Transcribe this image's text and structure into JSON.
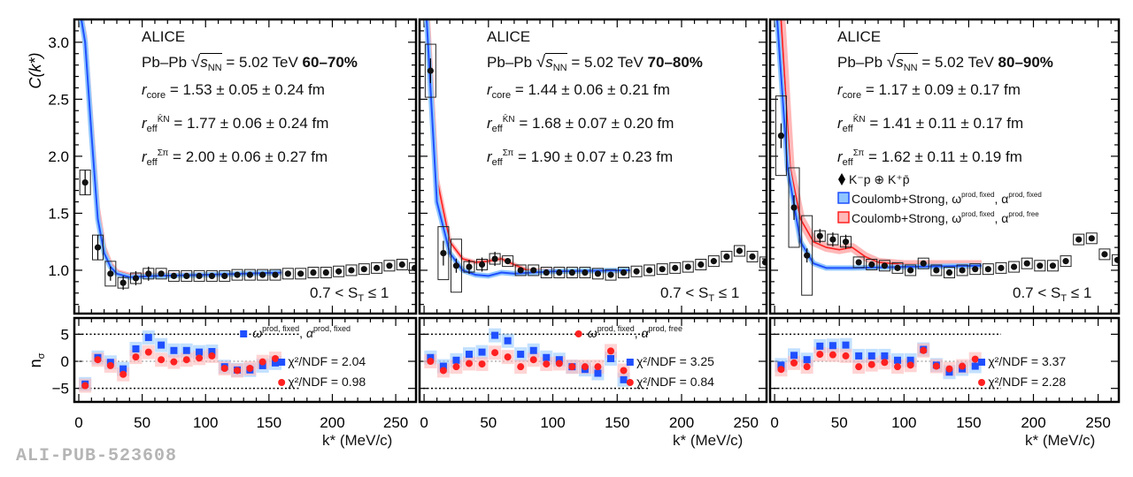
{
  "watermark": "ALI-PUB-523608",
  "colors": {
    "blue": "#1f4fff",
    "red": "#ff2020",
    "blue_band": "#8fc6ff",
    "red_band": "#ffb8b8",
    "data": "#111111"
  },
  "chart_data": [
    {
      "type": "scatter",
      "panel": "top",
      "ylabel": "C(k*)",
      "xlabel": "k* (MeV/c)",
      "xlim": [
        -3.5,
        266
      ],
      "ylim": [
        0.62,
        3.2
      ],
      "yticks": [
        "1.0",
        "1.5",
        "2.0",
        "2.5",
        "3.0"
      ],
      "xticks": [
        "0",
        "50",
        "100",
        "150",
        "200",
        "250"
      ],
      "experiment": "ALICE",
      "system": "Pb–Pb",
      "energy": "= 5.02 TeV",
      "centrality": "60–70%",
      "r_core": "= 1.53 ± 0.05 ± 0.24 fm",
      "r_eff_KN": "= 1.77 ± 0.06 ± 0.24 fm",
      "r_eff_SigmaPi": "= 2.00 ± 0.06 ± 0.27 fm",
      "st_label": "0.7 < S",
      "st_label_end": " ≤ 1",
      "k": [
        5,
        15,
        25,
        35,
        45,
        55,
        65,
        75,
        85,
        95,
        105,
        115,
        125,
        135,
        145,
        155,
        165,
        175,
        185,
        195,
        205,
        215,
        225,
        235,
        245,
        255,
        265
      ],
      "C": [
        1.77,
        1.2,
        0.97,
        0.89,
        0.93,
        0.97,
        0.97,
        0.95,
        0.95,
        0.95,
        0.95,
        0.95,
        0.96,
        0.96,
        0.96,
        0.96,
        0.97,
        0.97,
        0.98,
        0.98,
        0.99,
        1.0,
        1.01,
        1.02,
        1.04,
        1.05,
        1.02
      ],
      "fit_fixed": [
        [
          2,
          3.2
        ],
        [
          5,
          3.0
        ],
        [
          10,
          2.2
        ],
        [
          15,
          1.45
        ],
        [
          20,
          1.15
        ],
        [
          25,
          1.03
        ],
        [
          30,
          0.97
        ],
        [
          40,
          0.94
        ],
        [
          60,
          0.95
        ],
        [
          100,
          0.96
        ],
        [
          160,
          0.98
        ]
      ],
      "fit_free": [
        [
          2.5,
          3.2
        ],
        [
          5,
          3.05
        ],
        [
          10,
          2.3
        ],
        [
          15,
          1.55
        ],
        [
          20,
          1.2
        ],
        [
          25,
          1.06
        ],
        [
          30,
          0.99
        ],
        [
          40,
          0.96
        ],
        [
          60,
          0.96
        ],
        [
          100,
          0.965
        ],
        [
          160,
          0.98
        ]
      ],
      "nsigma_k": [
        5,
        15,
        25,
        35,
        45,
        55,
        65,
        75,
        85,
        95,
        105,
        115,
        125,
        135,
        145,
        155
      ],
      "nsigma_fixed": [
        -4.2,
        0.7,
        -0.2,
        -1.4,
        2.3,
        4.4,
        3.0,
        2.0,
        2.0,
        1.7,
        1.8,
        -1.0,
        -1.6,
        -1.6,
        -0.8,
        -0.3
      ],
      "nsigma_free": [
        -4.5,
        0.3,
        -0.8,
        -2.4,
        0.8,
        1.7,
        0.3,
        -0.1,
        0.3,
        0.6,
        1.0,
        -1.3,
        -1.7,
        -1.3,
        -0.1,
        0.5
      ],
      "chi2_fixed": "χ²/NDF = 2.04",
      "chi2_free": "χ²/NDF = 0.98",
      "nsigma_legend": {
        "marker": "blue",
        "omega": "ω",
        "omega_sup": "prod, fixed",
        "alpha": "α",
        "alpha_sup": "prod, fixed"
      }
    },
    {
      "type": "scatter",
      "xlabel": "k* (MeV/c)",
      "xlim": [
        -3.5,
        266
      ],
      "ylim": [
        0.62,
        3.2
      ],
      "xticks": [
        "0",
        "50",
        "100",
        "150",
        "200",
        "250"
      ],
      "experiment": "ALICE",
      "system": "Pb–Pb",
      "energy": "= 5.02 TeV",
      "centrality": "70–80%",
      "r_core": "= 1.44 ± 0.06 ± 0.21 fm",
      "r_eff_KN": "= 1.68 ± 0.07 ± 0.20 fm",
      "r_eff_SigmaPi": "= 1.90 ± 0.07 ± 0.23 fm",
      "st_label": "0.7 < S",
      "st_label_end": " ≤ 1",
      "k": [
        5,
        15,
        25,
        35,
        45,
        55,
        65,
        75,
        85,
        95,
        105,
        115,
        125,
        135,
        145,
        155,
        165,
        175,
        185,
        195,
        205,
        215,
        225,
        235,
        245,
        255,
        265
      ],
      "C": [
        2.75,
        1.15,
        1.04,
        1.03,
        1.05,
        1.1,
        1.08,
        1.0,
        1.0,
        0.98,
        0.98,
        0.98,
        0.98,
        0.97,
        0.96,
        0.98,
        0.99,
        1.0,
        1.01,
        1.02,
        1.03,
        1.05,
        1.08,
        1.12,
        1.17,
        1.12,
        1.07
      ],
      "fit_fixed": [
        [
          2,
          3.2
        ],
        [
          10,
          1.6
        ],
        [
          20,
          1.15
        ],
        [
          30,
          1.0
        ],
        [
          40,
          0.96
        ],
        [
          50,
          0.95
        ],
        [
          60,
          0.98
        ],
        [
          70,
          0.97
        ],
        [
          100,
          0.99
        ],
        [
          160,
          1.0
        ]
      ],
      "fit_free": [
        [
          3,
          3.2
        ],
        [
          10,
          1.8
        ],
        [
          20,
          1.25
        ],
        [
          30,
          1.1
        ],
        [
          40,
          1.07
        ],
        [
          50,
          1.08
        ],
        [
          60,
          1.1
        ],
        [
          70,
          1.05
        ],
        [
          80,
          1.0
        ],
        [
          160,
          0.99
        ]
      ],
      "nsigma_k": [
        5,
        15,
        25,
        35,
        45,
        55,
        65,
        75,
        85,
        95,
        105,
        115,
        125,
        135,
        145,
        155
      ],
      "nsigma_fixed": [
        0.7,
        -0.9,
        0.2,
        1.3,
        1.7,
        4.8,
        3.8,
        1.3,
        2.0,
        0.7,
        0.3,
        -1.0,
        -1.5,
        -2.2,
        0.5,
        -3.4
      ],
      "nsigma_free": [
        0.0,
        -1.7,
        -1.0,
        -0.4,
        -0.5,
        1.6,
        0.8,
        -1.0,
        0.3,
        -0.5,
        -0.4,
        -1.0,
        -1.0,
        -1.0,
        1.9,
        -1.7
      ],
      "chi2_fixed": "χ²/NDF = 3.25",
      "chi2_free": "χ²/NDF = 0.84",
      "nsigma_legend": {
        "marker": "red",
        "omega": "ω",
        "omega_sup": "prod, fixed",
        "alpha": "α",
        "alpha_sup": "prod, free"
      }
    },
    {
      "type": "scatter",
      "xlabel": "k* (MeV/c)",
      "xlim": [
        -3.5,
        266
      ],
      "ylim": [
        0.62,
        3.2
      ],
      "xticks": [
        "0",
        "50",
        "100",
        "150",
        "200",
        "250"
      ],
      "experiment": "ALICE",
      "system": "Pb–Pb",
      "energy": "= 5.02 TeV",
      "centrality": "80–90%",
      "r_core": "= 1.17 ± 0.09 ± 0.17 fm",
      "r_eff_KN": "= 1.41 ± 0.11 ± 0.17 fm",
      "r_eff_SigmaPi": "= 1.62 ± 0.11 ± 0.19 fm",
      "st_label": "0.7 < S",
      "st_label_end": " ≤ 1",
      "legend": {
        "data": "K⁻p ⊕ K⁺p̄",
        "fit_fixed": "Coulomb+Strong, ω",
        "fit_fixed_sup1": "prod, fixed",
        "fit_fixed_alpha": ", α",
        "fit_fixed_sup2": "prod, fixed",
        "fit_free": "Coulomb+Strong, ω",
        "fit_free_sup1": "prod, fixed",
        "fit_free_alpha": ", α",
        "fit_free_sup2": "prod, free"
      },
      "k": [
        5,
        15,
        25,
        35,
        45,
        55,
        65,
        75,
        85,
        95,
        105,
        115,
        125,
        135,
        145,
        155,
        165,
        175,
        185,
        195,
        205,
        215,
        225,
        235,
        245,
        255,
        265
      ],
      "C": [
        2.18,
        1.55,
        1.13,
        1.3,
        1.27,
        1.25,
        1.07,
        1.05,
        1.04,
        1.02,
        1.0,
        1.06,
        1.0,
        0.98,
        1.0,
        1.01,
        1.01,
        1.02,
        1.03,
        1.06,
        1.04,
        1.04,
        1.08,
        1.27,
        1.28,
        1.14,
        1.09
      ],
      "fit_fixed": [
        [
          2,
          3.2
        ],
        [
          10,
          1.9
        ],
        [
          20,
          1.25
        ],
        [
          30,
          1.06
        ],
        [
          40,
          1.02
        ],
        [
          60,
          1.02
        ],
        [
          100,
          1.03
        ],
        [
          160,
          1.04
        ]
      ],
      "fit_free": [
        [
          5,
          3.2
        ],
        [
          12,
          1.9
        ],
        [
          20,
          1.45
        ],
        [
          30,
          1.25
        ],
        [
          40,
          1.2
        ],
        [
          50,
          1.18
        ],
        [
          60,
          1.2
        ],
        [
          70,
          1.12
        ],
        [
          80,
          1.07
        ],
        [
          100,
          1.05
        ],
        [
          160,
          1.05
        ]
      ],
      "nsigma_k": [
        5,
        15,
        25,
        35,
        45,
        55,
        65,
        75,
        85,
        95,
        105,
        115,
        125,
        135,
        145,
        155
      ],
      "nsigma_fixed": [
        -0.7,
        1.1,
        0.3,
        2.8,
        2.9,
        3.0,
        1.0,
        1.0,
        1.0,
        0.2,
        0.2,
        2.2,
        -0.7,
        -2.0,
        -1.4,
        -0.9
      ],
      "nsigma_free": [
        -1.5,
        -0.3,
        -1.0,
        1.3,
        1.2,
        1.0,
        -1.0,
        -0.6,
        -0.2,
        -1.0,
        -0.7,
        2.0,
        -0.9,
        -1.4,
        -0.9,
        0.4
      ],
      "chi2_fixed": "χ²/NDF = 3.37",
      "chi2_free": "χ²/NDF = 2.28"
    }
  ],
  "nsigma_axis": {
    "ylabel": "n",
    "ylabel_sub": "σ",
    "ylim": [
      -7.5,
      8
    ],
    "yticks": [
      "5",
      "0",
      "−5"
    ]
  }
}
